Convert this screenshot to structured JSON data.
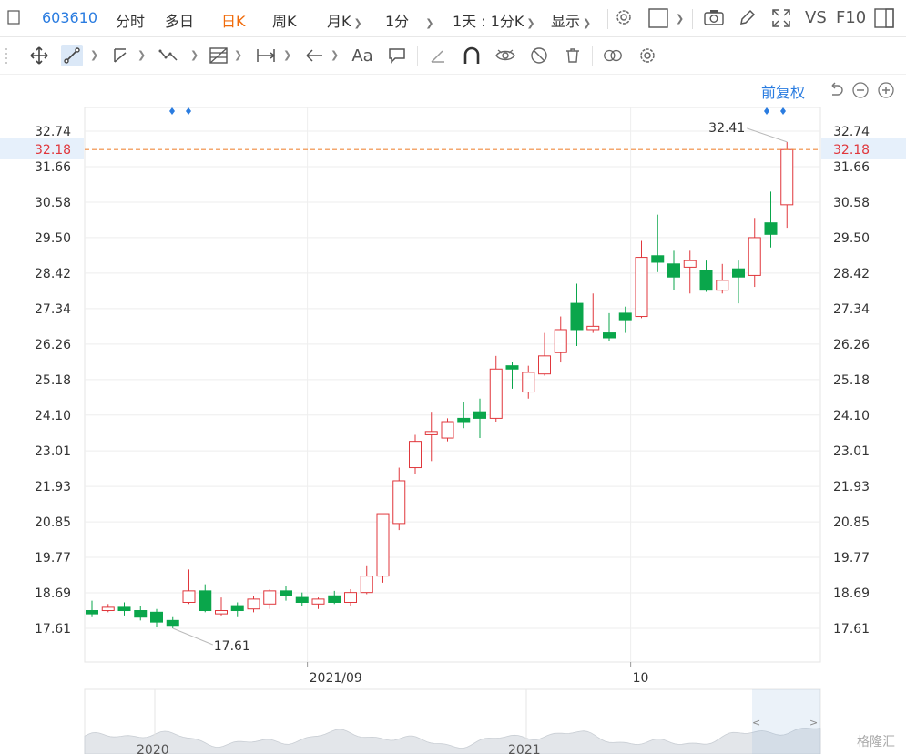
{
  "topbar": {
    "code": "603610",
    "tabs": [
      "分时",
      "多日",
      "日K",
      "周K",
      "月K",
      "1分"
    ],
    "active_tab": "日K",
    "range_label": "1天 : 1分K",
    "display_label": "显示",
    "vs_label": "VS",
    "f10_label": "F10"
  },
  "toolbar": {
    "icons": [
      "move-icon",
      "line-tool-icon",
      "channel-tool-icon",
      "wave-tool-icon",
      "fib-tool-icon",
      "range-tool-icon",
      "arrow-tool-icon",
      "text-tool-icon",
      "comment-tool-icon",
      "angle-tool-icon",
      "magnet-icon",
      "eye-toggle-icon",
      "hide-icon",
      "delete-icon",
      "link-icon",
      "settings-icon"
    ],
    "text_tool_label": "Aa"
  },
  "chart": {
    "adjust_label": "前复权",
    "colors": {
      "up": "#e0373c",
      "down": "#0aa64b",
      "price_line": "#f08a3e",
      "price_bg": "#e6f0fb",
      "grid": "#eeeeee"
    },
    "watermark": "格隆汇"
  },
  "chart_data": {
    "type": "candlestick",
    "ylim": [
      16.8,
      33.3
    ],
    "y_ticks": [
      "32.74",
      "31.66",
      "30.58",
      "29.50",
      "28.42",
      "27.34",
      "26.26",
      "25.18",
      "24.10",
      "23.01",
      "21.93",
      "20.85",
      "19.77",
      "18.69",
      "17.61"
    ],
    "current_price": "32.18",
    "x_labels": [
      "2021/09",
      "10"
    ],
    "x_label_index": [
      14,
      34
    ],
    "min_label": "17.61",
    "max_label": "32.41",
    "nav_labels": [
      "2020",
      "2021"
    ],
    "candles": [
      {
        "o": 18.15,
        "c": 18.05,
        "h": 18.45,
        "l": 17.95
      },
      {
        "o": 18.15,
        "c": 18.25,
        "h": 18.35,
        "l": 18.1
      },
      {
        "o": 18.25,
        "c": 18.15,
        "h": 18.4,
        "l": 18.0
      },
      {
        "o": 18.15,
        "c": 17.95,
        "h": 18.3,
        "l": 17.85
      },
      {
        "o": 18.1,
        "c": 17.8,
        "h": 18.2,
        "l": 17.65
      },
      {
        "o": 17.85,
        "c": 17.7,
        "h": 17.95,
        "l": 17.61
      },
      {
        "o": 18.4,
        "c": 18.75,
        "h": 19.4,
        "l": 18.35
      },
      {
        "o": 18.75,
        "c": 18.15,
        "h": 18.95,
        "l": 18.1
      },
      {
        "o": 18.05,
        "c": 18.15,
        "h": 18.55,
        "l": 18.0
      },
      {
        "o": 18.3,
        "c": 18.15,
        "h": 18.4,
        "l": 17.95
      },
      {
        "o": 18.2,
        "c": 18.5,
        "h": 18.6,
        "l": 18.1
      },
      {
        "o": 18.35,
        "c": 18.75,
        "h": 18.8,
        "l": 18.2
      },
      {
        "o": 18.75,
        "c": 18.6,
        "h": 18.9,
        "l": 18.45
      },
      {
        "o": 18.55,
        "c": 18.4,
        "h": 18.7,
        "l": 18.3
      },
      {
        "o": 18.35,
        "c": 18.5,
        "h": 18.55,
        "l": 18.2
      },
      {
        "o": 18.6,
        "c": 18.4,
        "h": 18.75,
        "l": 18.35
      },
      {
        "o": 18.4,
        "c": 18.7,
        "h": 18.8,
        "l": 18.3
      },
      {
        "o": 18.7,
        "c": 19.2,
        "h": 19.5,
        "l": 18.65
      },
      {
        "o": 19.2,
        "c": 21.1,
        "h": 21.1,
        "l": 19.0
      },
      {
        "o": 20.8,
        "c": 22.1,
        "h": 22.5,
        "l": 20.6
      },
      {
        "o": 22.5,
        "c": 23.3,
        "h": 23.5,
        "l": 22.3
      },
      {
        "o": 23.5,
        "c": 23.6,
        "h": 24.2,
        "l": 22.7
      },
      {
        "o": 23.4,
        "c": 23.9,
        "h": 24.0,
        "l": 23.3
      },
      {
        "o": 24.0,
        "c": 23.9,
        "h": 24.5,
        "l": 23.7
      },
      {
        "o": 24.2,
        "c": 24.0,
        "h": 24.6,
        "l": 23.4
      },
      {
        "o": 24.0,
        "c": 25.5,
        "h": 25.9,
        "l": 23.9
      },
      {
        "o": 25.6,
        "c": 25.5,
        "h": 25.7,
        "l": 24.9
      },
      {
        "o": 24.8,
        "c": 25.4,
        "h": 25.6,
        "l": 24.6
      },
      {
        "o": 25.35,
        "c": 25.9,
        "h": 26.6,
        "l": 25.3
      },
      {
        "o": 26.0,
        "c": 26.7,
        "h": 27.1,
        "l": 25.7
      },
      {
        "o": 27.5,
        "c": 26.7,
        "h": 28.1,
        "l": 26.2
      },
      {
        "o": 26.7,
        "c": 26.8,
        "h": 27.8,
        "l": 26.6
      },
      {
        "o": 26.6,
        "c": 26.45,
        "h": 27.2,
        "l": 26.35
      },
      {
        "o": 27.2,
        "c": 27.0,
        "h": 27.4,
        "l": 26.6
      },
      {
        "o": 27.1,
        "c": 28.9,
        "h": 29.4,
        "l": 27.05
      },
      {
        "o": 28.95,
        "c": 28.75,
        "h": 30.2,
        "l": 28.45
      },
      {
        "o": 28.7,
        "c": 28.3,
        "h": 29.1,
        "l": 27.9
      },
      {
        "o": 28.6,
        "c": 28.8,
        "h": 29.1,
        "l": 27.8
      },
      {
        "o": 28.5,
        "c": 27.9,
        "h": 28.8,
        "l": 27.85
      },
      {
        "o": 27.9,
        "c": 28.2,
        "h": 28.7,
        "l": 27.8
      },
      {
        "o": 28.55,
        "c": 28.3,
        "h": 28.8,
        "l": 27.5
      },
      {
        "o": 28.35,
        "c": 29.5,
        "h": 30.1,
        "l": 28.0
      },
      {
        "o": 29.95,
        "c": 29.6,
        "h": 30.9,
        "l": 29.2
      },
      {
        "o": 30.5,
        "c": 32.18,
        "h": 32.41,
        "l": 29.8
      }
    ]
  }
}
